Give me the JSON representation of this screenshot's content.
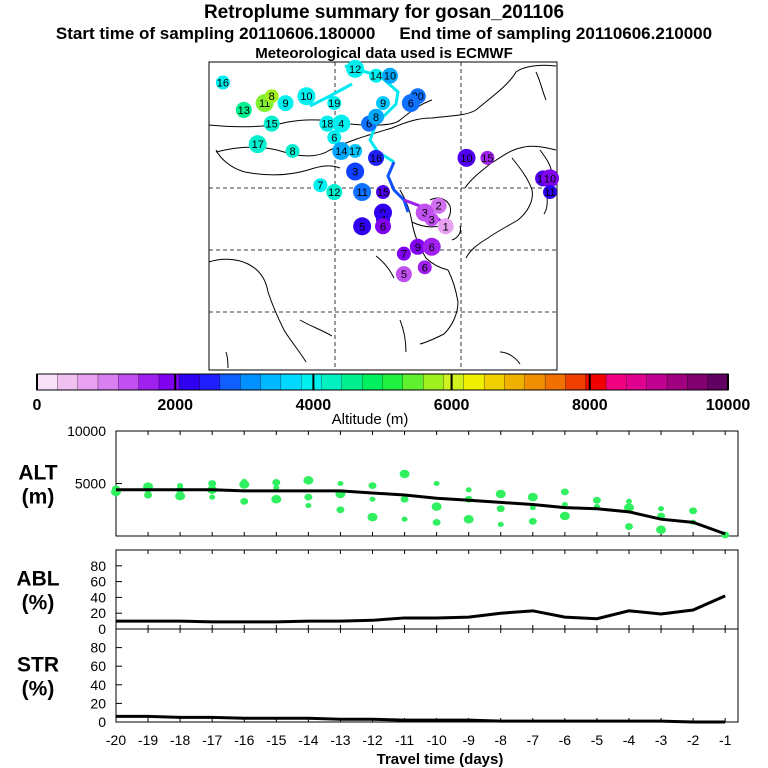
{
  "titles": {
    "main": "Retroplume summary for gosan_201106",
    "start": "Start time of sampling 20110606.180000",
    "end": "End time of sampling 20110606.210000",
    "met": "Meteorological data used is ECMWF"
  },
  "colors": {
    "scale": [
      "#f8e0f8",
      "#f0c0f0",
      "#e8a0f0",
      "#d880f0",
      "#c050f0",
      "#a020f0",
      "#8000f0",
      "#3000f0",
      "#2020ff",
      "#1060ff",
      "#0090ff",
      "#00b8ff",
      "#00d8ff",
      "#00f0f0",
      "#00f0c0",
      "#00f090",
      "#00f060",
      "#20f040",
      "#60f030",
      "#a0f020",
      "#d0f020",
      "#f0f000",
      "#f0d000",
      "#f0b000",
      "#f09000",
      "#f07000",
      "#f04000",
      "#f00000",
      "#f00080",
      "#e00090",
      "#c00090",
      "#a00080",
      "#800070",
      "#600060"
    ],
    "plume": "#30f060",
    "line": "#000000"
  },
  "chart_data": [
    {
      "type": "map",
      "title": "Retroplume summary for gosan_201106",
      "markers": [
        {
          "label": "16",
          "lon": 92,
          "lat": 54,
          "color": "#00f0f0"
        },
        {
          "label": "13",
          "lon": 95,
          "lat": 50,
          "color": "#00f090"
        },
        {
          "label": "11",
          "lon": 98,
          "lat": 51,
          "color": "#80f030"
        },
        {
          "label": "8",
          "lon": 99,
          "lat": 52,
          "color": "#a0f020"
        },
        {
          "label": "9",
          "lon": 101,
          "lat": 51,
          "color": "#00f0f0"
        },
        {
          "label": "10",
          "lon": 104,
          "lat": 52,
          "color": "#00f0f0"
        },
        {
          "label": "19",
          "lon": 108,
          "lat": 51,
          "color": "#00f0f0"
        },
        {
          "label": "15",
          "lon": 99,
          "lat": 48,
          "color": "#00f0d0"
        },
        {
          "label": "17",
          "lon": 97,
          "lat": 45,
          "color": "#00f0d0"
        },
        {
          "label": "8",
          "lon": 102,
          "lat": 44,
          "color": "#00f0d0"
        },
        {
          "label": "18",
          "lon": 107,
          "lat": 48,
          "color": "#00f0f0"
        },
        {
          "label": "4",
          "lon": 109,
          "lat": 48,
          "color": "#00f0f0"
        },
        {
          "label": "6",
          "lon": 108,
          "lat": 46,
          "color": "#00f0f0"
        },
        {
          "label": "6",
          "lon": 113,
          "lat": 48,
          "color": "#1070ff"
        },
        {
          "label": "14",
          "lon": 109,
          "lat": 44,
          "color": "#00a8ff"
        },
        {
          "label": "17",
          "lon": 111,
          "lat": 44,
          "color": "#00c8ff"
        },
        {
          "label": "16",
          "lon": 114,
          "lat": 43,
          "color": "#2020ff"
        },
        {
          "label": "3",
          "lon": 111,
          "lat": 41,
          "color": "#1040ff"
        },
        {
          "label": "7",
          "lon": 106,
          "lat": 39,
          "color": "#00f0f0"
        },
        {
          "label": "12",
          "lon": 108,
          "lat": 38,
          "color": "#00f0d0"
        },
        {
          "label": "11",
          "lon": 112,
          "lat": 38,
          "color": "#1070ff"
        },
        {
          "label": "15",
          "lon": 115,
          "lat": 38,
          "color": "#5000f0"
        },
        {
          "label": "2",
          "lon": 123,
          "lat": 36,
          "color": "#d070f0"
        },
        {
          "label": "3",
          "lon": 121,
          "lat": 35,
          "color": "#c050f0"
        },
        {
          "label": "3",
          "lon": 122,
          "lat": 34,
          "color": "#c050f0"
        },
        {
          "label": "1",
          "lon": 124,
          "lat": 33,
          "color": "#e8a0f0"
        },
        {
          "label": "9",
          "lon": 115,
          "lat": 35,
          "color": "#3000f0"
        },
        {
          "label": "4",
          "lon": 115,
          "lat": 34,
          "color": "#3000f0"
        },
        {
          "label": "6",
          "lon": 115,
          "lat": 33,
          "color": "#8000f0"
        },
        {
          "label": "5",
          "lon": 112,
          "lat": 33,
          "color": "#3000f0"
        },
        {
          "label": "7",
          "lon": 118,
          "lat": 29,
          "color": "#8000f0"
        },
        {
          "label": "9",
          "lon": 120,
          "lat": 30,
          "color": "#8000f0"
        },
        {
          "label": "6",
          "lon": 122,
          "lat": 30,
          "color": "#a020f0"
        },
        {
          "label": "6",
          "lon": 121,
          "lat": 27,
          "color": "#a020f0"
        },
        {
          "label": "5",
          "lon": 118,
          "lat": 26,
          "color": "#c050f0"
        },
        {
          "label": "10",
          "lon": 127,
          "lat": 43,
          "color": "#5000f0"
        },
        {
          "label": "15",
          "lon": 130,
          "lat": 43,
          "color": "#a020f0"
        },
        {
          "label": "14",
          "lon": 138,
          "lat": 40,
          "color": "#5000f0"
        },
        {
          "label": "10",
          "lon": 139,
          "lat": 40,
          "color": "#8000f0"
        },
        {
          "label": "11",
          "lon": 139,
          "lat": 38,
          "color": "#3000f0"
        },
        {
          "label": "20",
          "lon": 120,
          "lat": 52,
          "color": "#1070ff"
        },
        {
          "label": "6",
          "lon": 119,
          "lat": 51,
          "color": "#1070ff"
        },
        {
          "label": "14",
          "lon": 114,
          "lat": 55,
          "color": "#00f0f0"
        },
        {
          "label": "10",
          "lon": 116,
          "lat": 55,
          "color": "#00a8ff"
        },
        {
          "label": "12",
          "lon": 111,
          "lat": 56,
          "color": "#00f0f0"
        },
        {
          "label": "9",
          "lon": 115,
          "lat": 51,
          "color": "#00c8ff"
        },
        {
          "label": "8",
          "lon": 114,
          "lat": 49,
          "color": "#00a8ff"
        }
      ]
    },
    {
      "type": "colorbar",
      "xlabel": "Altitude (m)",
      "range": [
        0,
        10000
      ],
      "tick_labels": [
        "0",
        "2000",
        "4000",
        "6000",
        "8000",
        "10000"
      ]
    },
    {
      "type": "line",
      "panel": "ALT",
      "ylabel": "ALT\n(m)",
      "ylim": [
        0,
        10000
      ],
      "yticks": [
        "5000",
        "10000"
      ],
      "x": [
        -20,
        -19,
        -18,
        -17,
        -16,
        -15,
        -14,
        -13,
        -12,
        -11,
        -10,
        -9,
        -8,
        -7,
        -6,
        -5,
        -4,
        -3,
        -2,
        -1
      ],
      "values": [
        4400,
        4400,
        4400,
        4400,
        4300,
        4300,
        4300,
        4300,
        4100,
        3900,
        3600,
        3400,
        3200,
        3000,
        2700,
        2600,
        2300,
        1600,
        1300,
        200
      ],
      "scatter_note": "green plume-spread markers around median",
      "spread": [
        {
          "x": -20,
          "y": [
            4000,
            4500,
            4200
          ]
        },
        {
          "x": -19,
          "y": [
            3900,
            4700,
            4300
          ]
        },
        {
          "x": -18,
          "y": [
            3800,
            4800,
            4400
          ]
        },
        {
          "x": -17,
          "y": [
            3700,
            5000,
            4400
          ]
        },
        {
          "x": -16,
          "y": [
            3300,
            4900,
            5200
          ]
        },
        {
          "x": -15,
          "y": [
            3500,
            4600,
            5100
          ]
        },
        {
          "x": -14,
          "y": [
            2900,
            3700,
            5300
          ]
        },
        {
          "x": -13,
          "y": [
            2500,
            4000,
            5000
          ]
        },
        {
          "x": -12,
          "y": [
            1800,
            3500,
            4800
          ]
        },
        {
          "x": -11,
          "y": [
            1600,
            3500,
            5900
          ]
        },
        {
          "x": -10,
          "y": [
            1300,
            2800,
            5000
          ]
        },
        {
          "x": -9,
          "y": [
            1600,
            4400,
            3500
          ]
        },
        {
          "x": -8,
          "y": [
            1100,
            2600,
            4000
          ]
        },
        {
          "x": -7,
          "y": [
            1400,
            3700,
            2700
          ]
        },
        {
          "x": -6,
          "y": [
            1900,
            3000,
            4200
          ]
        },
        {
          "x": -5,
          "y": [
            2800,
            3400
          ]
        },
        {
          "x": -4,
          "y": [
            900,
            2700,
            3300
          ]
        },
        {
          "x": -3,
          "y": [
            600,
            2600,
            1900
          ]
        },
        {
          "x": -2,
          "y": [
            1300,
            2400
          ]
        },
        {
          "x": -1,
          "y": [
            100
          ]
        }
      ]
    },
    {
      "type": "line",
      "panel": "ABL",
      "ylabel": "ABL\n(%)",
      "ylim": [
        0,
        100
      ],
      "yticks": [
        "0",
        "20",
        "40",
        "60",
        "80"
      ],
      "x": [
        -20,
        -19,
        -18,
        -17,
        -16,
        -15,
        -14,
        -13,
        -12,
        -11,
        -10,
        -9,
        -8,
        -7,
        -6,
        -5,
        -4,
        -3,
        -2,
        -1
      ],
      "values": [
        10,
        10,
        10,
        9,
        9,
        9,
        10,
        10,
        11,
        14,
        14,
        15,
        20,
        23,
        15,
        13,
        23,
        19,
        24,
        42
      ]
    },
    {
      "type": "line",
      "panel": "STR",
      "ylabel": "STR\n(%)",
      "ylim": [
        0,
        100
      ],
      "yticks": [
        "0",
        "20",
        "40",
        "60",
        "80"
      ],
      "x": [
        -20,
        -19,
        -18,
        -17,
        -16,
        -15,
        -14,
        -13,
        -12,
        -11,
        -10,
        -9,
        -8,
        -7,
        -6,
        -5,
        -4,
        -3,
        -2,
        -1
      ],
      "values": [
        6,
        6,
        5,
        5,
        4,
        4,
        4,
        3,
        3,
        2,
        2,
        2,
        1,
        1,
        1,
        1,
        1,
        1,
        0,
        0
      ]
    },
    {
      "type": "axis",
      "xlabel": "Travel time (days)",
      "xtick_labels": [
        "-20",
        "-19",
        "-18",
        "-17",
        "-16",
        "-15",
        "-14",
        "-13",
        "-12",
        "-11",
        "-10",
        "-9",
        "-8",
        "-7",
        "-6",
        "-5",
        "-4",
        "-3",
        "-2",
        "-1"
      ]
    }
  ]
}
